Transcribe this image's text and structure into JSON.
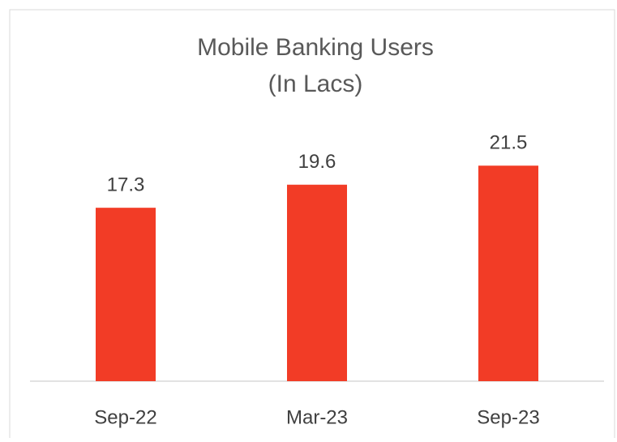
{
  "chart_data": {
    "type": "bar",
    "title": "Mobile Banking Users",
    "subtitle": "(In Lacs)",
    "categories": [
      "Sep-22",
      "Mar-23",
      "Sep-23"
    ],
    "values": [
      17.3,
      19.6,
      21.5
    ],
    "color": "#f23c26",
    "ylim": [
      0,
      25
    ]
  }
}
